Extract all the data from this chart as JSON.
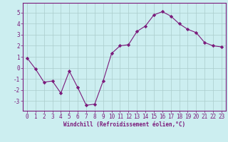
{
  "x": [
    0,
    1,
    2,
    3,
    4,
    5,
    6,
    7,
    8,
    9,
    10,
    11,
    12,
    13,
    14,
    15,
    16,
    17,
    18,
    19,
    20,
    21,
    22,
    23
  ],
  "y": [
    0.9,
    -0.1,
    -1.3,
    -1.2,
    -2.3,
    -0.3,
    -1.8,
    -3.4,
    -3.3,
    -1.2,
    1.3,
    2.0,
    2.1,
    3.3,
    3.8,
    4.8,
    5.1,
    4.7,
    4.0,
    3.5,
    3.2,
    2.3,
    2.0,
    1.9
  ],
  "line_color": "#7b1a7b",
  "marker": "D",
  "marker_size": 2.2,
  "bg_color": "#cceef0",
  "grid_color": "#aacccc",
  "xlabel": "Windchill (Refroidissement éolien,°C)",
  "yticks": [
    -3,
    -2,
    -1,
    0,
    1,
    2,
    3,
    4,
    5
  ],
  "xticks": [
    0,
    1,
    2,
    3,
    4,
    5,
    6,
    7,
    8,
    9,
    10,
    11,
    12,
    13,
    14,
    15,
    16,
    17,
    18,
    19,
    20,
    21,
    22,
    23
  ],
  "ylim": [
    -3.9,
    5.9
  ],
  "xlim": [
    -0.5,
    23.5
  ],
  "axis_color": "#7b1a7b",
  "font_color": "#7b1a7b",
  "tick_fontsize": 5.5,
  "xlabel_fontsize": 5.5
}
